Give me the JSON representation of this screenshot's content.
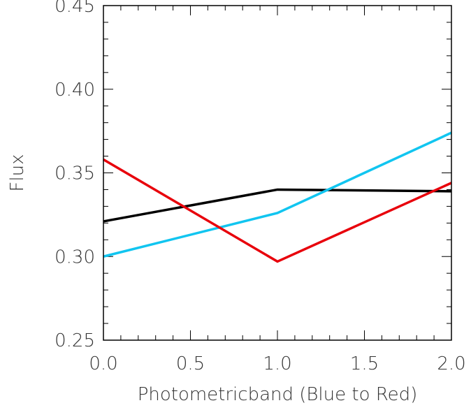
{
  "chart_data": {
    "type": "line",
    "title": "",
    "xlabel": "Photometricband (Blue to Red)",
    "ylabel": "Flux",
    "xlim": [
      0.0,
      2.0
    ],
    "ylim": [
      0.25,
      0.45
    ],
    "x_ticks": [
      "0.0",
      "0.5",
      "1.0",
      "1.5",
      "2.0"
    ],
    "y_ticks": [
      "0.25",
      "0.30",
      "0.35",
      "0.40",
      "0.45"
    ],
    "x": [
      0.0,
      1.0,
      2.0
    ],
    "series": [
      {
        "color": "#000000",
        "values": [
          0.321,
          0.34,
          0.339
        ]
      },
      {
        "color": "#11c5f0",
        "values": [
          0.3,
          0.326,
          0.374
        ]
      },
      {
        "color": "#e8000b",
        "values": [
          0.358,
          0.297,
          0.344
        ]
      }
    ],
    "grid": false,
    "legend": "none"
  }
}
